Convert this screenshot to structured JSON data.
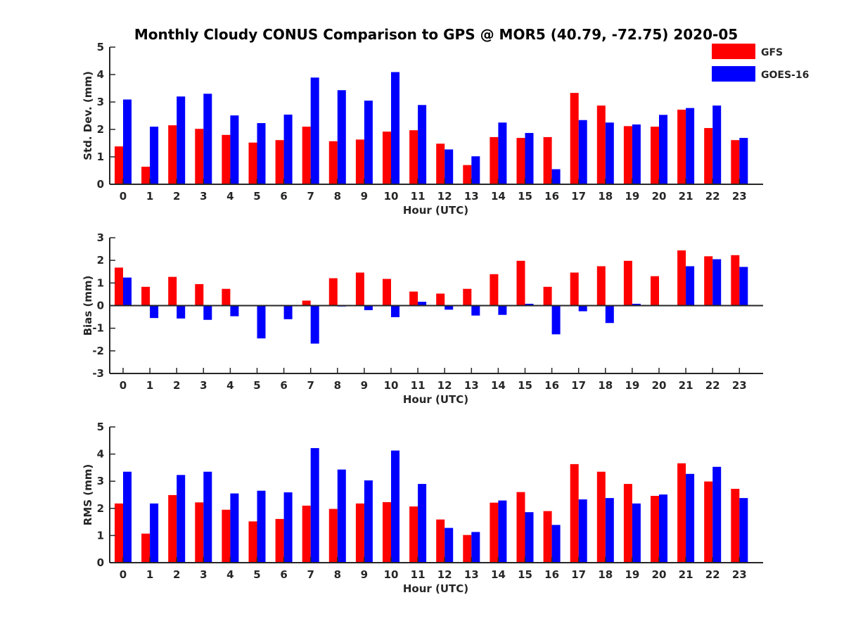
{
  "title": "Monthly Cloudy CONUS Comparison to GPS @ MOR5 (40.79, -72.75) 2020-05",
  "legend": [
    {
      "label": "GFS",
      "color": "#ff0000"
    },
    {
      "label": "GOES-16",
      "color": "#0000ff"
    }
  ],
  "chart_data": [
    {
      "type": "bar",
      "ylabel": "Std. Dev. (mm)",
      "xlabel": "Hour (UTC)",
      "ylim": [
        0,
        5
      ],
      "yticks": [
        0,
        1,
        2,
        3,
        4,
        5
      ],
      "categories": [
        "0",
        "1",
        "2",
        "3",
        "4",
        "5",
        "6",
        "7",
        "8",
        "9",
        "10",
        "11",
        "12",
        "13",
        "14",
        "15",
        "16",
        "17",
        "18",
        "19",
        "20",
        "21",
        "22",
        "23"
      ],
      "series": [
        {
          "name": "GFS",
          "color": "#ff0000",
          "values": [
            1.38,
            0.64,
            2.15,
            2.02,
            1.8,
            1.52,
            1.61,
            2.1,
            1.57,
            1.63,
            1.92,
            1.97,
            1.48,
            0.7,
            1.72,
            1.69,
            1.72,
            3.33,
            2.87,
            2.12,
            2.1,
            2.72,
            2.05,
            1.61
          ]
        },
        {
          "name": "GOES-16",
          "color": "#0000ff",
          "values": [
            3.09,
            2.1,
            3.2,
            3.3,
            2.51,
            2.23,
            2.54,
            3.89,
            3.43,
            3.05,
            4.09,
            2.89,
            1.27,
            1.02,
            2.25,
            1.87,
            0.55,
            2.34,
            2.25,
            2.18,
            2.53,
            2.78,
            2.87,
            1.69
          ]
        }
      ]
    },
    {
      "type": "bar",
      "ylabel": "Bias (mm)",
      "xlabel": "Hour (UTC)",
      "ylim": [
        -3,
        3
      ],
      "yticks": [
        -3,
        -2,
        -1,
        0,
        1,
        2,
        3
      ],
      "categories": [
        "0",
        "1",
        "2",
        "3",
        "4",
        "5",
        "6",
        "7",
        "8",
        "9",
        "10",
        "11",
        "12",
        "13",
        "14",
        "15",
        "16",
        "17",
        "18",
        "19",
        "20",
        "21",
        "22",
        "23"
      ],
      "series": [
        {
          "name": "GFS",
          "color": "#ff0000",
          "values": [
            1.68,
            0.83,
            1.27,
            0.95,
            0.74,
            0.02,
            -0.03,
            0.22,
            1.21,
            1.46,
            1.18,
            0.62,
            0.53,
            0.74,
            1.39,
            1.98,
            0.83,
            1.46,
            1.74,
            1.98,
            1.3,
            2.44,
            2.18,
            2.23
          ]
        },
        {
          "name": "GOES-16",
          "color": "#0000ff",
          "values": [
            1.24,
            -0.55,
            -0.57,
            -0.63,
            -0.47,
            -1.45,
            -0.6,
            -1.68,
            -0.04,
            -0.2,
            -0.51,
            0.17,
            -0.18,
            -0.44,
            -0.41,
            0.08,
            -1.27,
            -0.25,
            -0.77,
            0.08,
            -0.03,
            1.74,
            2.05,
            1.71
          ]
        }
      ]
    },
    {
      "type": "bar",
      "ylabel": "RMS (mm)",
      "xlabel": "Hour (UTC)",
      "ylim": [
        0,
        5
      ],
      "yticks": [
        0,
        1,
        2,
        3,
        4,
        5
      ],
      "categories": [
        "0",
        "1",
        "2",
        "3",
        "4",
        "5",
        "6",
        "7",
        "8",
        "9",
        "10",
        "11",
        "12",
        "13",
        "14",
        "15",
        "16",
        "17",
        "18",
        "19",
        "20",
        "21",
        "22",
        "23"
      ],
      "series": [
        {
          "name": "GFS",
          "color": "#ff0000",
          "values": [
            2.18,
            1.07,
            2.49,
            2.22,
            1.95,
            1.52,
            1.61,
            2.1,
            1.98,
            2.18,
            2.23,
            2.07,
            1.59,
            1.02,
            2.21,
            2.6,
            1.9,
            3.63,
            3.35,
            2.9,
            2.46,
            3.66,
            2.99,
            2.72
          ]
        },
        {
          "name": "GOES-16",
          "color": "#0000ff",
          "values": [
            3.35,
            2.18,
            3.23,
            3.35,
            2.55,
            2.65,
            2.59,
            4.22,
            3.43,
            3.03,
            4.13,
            2.9,
            1.28,
            1.13,
            2.29,
            1.86,
            1.39,
            2.33,
            2.38,
            2.18,
            2.51,
            3.27,
            3.53,
            2.38
          ]
        }
      ]
    }
  ]
}
